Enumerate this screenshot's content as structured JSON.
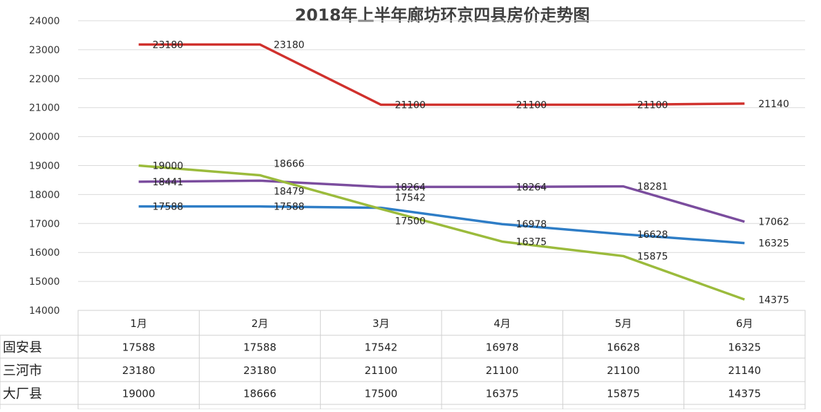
{
  "chart_data": {
    "type": "line",
    "title": "2018年上半年廊坊环京四县房价走势图",
    "categories": [
      "1月",
      "2月",
      "3月",
      "4月",
      "5月",
      "6月"
    ],
    "ylim": [
      14000,
      24000
    ],
    "yticks": [
      14000,
      15000,
      16000,
      17000,
      18000,
      19000,
      20000,
      21000,
      22000,
      23000,
      24000
    ],
    "grid": true,
    "data_table": true,
    "series": [
      {
        "name": "三河市",
        "color": "#d0312d",
        "values": [
          23180,
          23180,
          21100,
          21100,
          21100,
          21140
        ]
      },
      {
        "name": "",
        "color": "#7b4d9e",
        "values": [
          18441,
          18479,
          18264,
          18264,
          18281,
          17062
        ]
      },
      {
        "name": "固安县",
        "color": "#2e7dc6",
        "values": [
          17588,
          17588,
          17542,
          16978,
          16628,
          16325
        ]
      },
      {
        "name": "大厂县",
        "color": "#9bbb3c",
        "values": [
          19000,
          18666,
          17500,
          16375,
          15875,
          14375
        ]
      }
    ],
    "table_rows": [
      {
        "label": "固安县",
        "values": [
          "17588",
          "17588",
          "17542",
          "16978",
          "16628",
          "16325"
        ]
      },
      {
        "label": "三河市",
        "values": [
          "23180",
          "23180",
          "21100",
          "21100",
          "21100",
          "21140"
        ]
      },
      {
        "label": "大厂县",
        "values": [
          "19000",
          "18666",
          "17500",
          "16375",
          "15875",
          "14375"
        ]
      }
    ]
  }
}
